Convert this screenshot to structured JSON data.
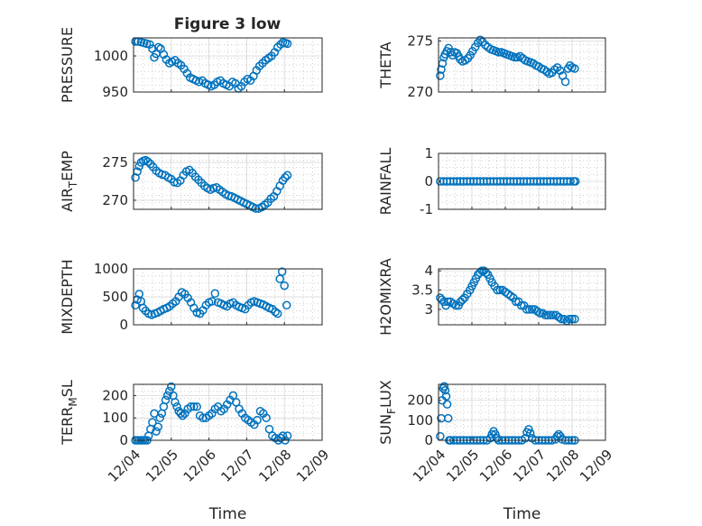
{
  "figure_title": "Figure 3 low",
  "marker_color": "#0072BD",
  "chart_data": [
    {
      "type": "scatter",
      "title": "Figure 3 low",
      "ylabel": "PRESSURE",
      "xlabel": "",
      "xlim": [
        0,
        5
      ],
      "ylim": [
        950,
        1025
      ],
      "yticks": [
        950,
        1000
      ],
      "xticks": [],
      "grid": true,
      "series": [
        {
          "x": [
            0.05,
            0.12,
            0.2,
            0.28,
            0.35,
            0.43,
            0.5,
            0.55,
            0.6,
            0.66,
            0.72,
            0.8,
            0.87,
            0.95,
            1.02,
            1.1,
            1.18,
            1.26,
            1.34,
            1.42,
            1.5,
            1.58,
            1.66,
            1.74,
            1.82,
            1.9,
            1.98,
            2.06,
            2.14,
            2.22,
            2.3,
            2.38,
            2.46,
            2.54,
            2.62,
            2.7,
            2.78,
            2.86,
            2.94,
            3.02,
            3.1,
            3.18,
            3.26,
            3.34,
            3.42,
            3.5,
            3.58,
            3.66,
            3.74,
            3.82,
            3.9,
            3.96,
            4.02,
            4.08
          ],
          "y": [
            1020,
            1020,
            1019,
            1018,
            1017,
            1016,
            1010,
            998,
            1003,
            1012,
            1010,
            1002,
            995,
            990,
            992,
            994,
            990,
            987,
            982,
            976,
            970,
            968,
            966,
            964,
            966,
            962,
            960,
            958,
            960,
            964,
            966,
            962,
            960,
            958,
            964,
            962,
            955,
            958,
            964,
            968,
            966,
            972,
            980,
            986,
            990,
            994,
            997,
            1000,
            1005,
            1012,
            1016,
            1019,
            1018,
            1017
          ]
        }
      ]
    },
    {
      "type": "scatter",
      "ylabel": "THETA",
      "xlabel": "",
      "xlim": [
        0,
        5
      ],
      "ylim": [
        270,
        275.3
      ],
      "yticks": [
        270,
        275
      ],
      "xticks": [],
      "grid": true,
      "series": [
        {
          "x": [
            0.05,
            0.08,
            0.12,
            0.16,
            0.2,
            0.25,
            0.3,
            0.36,
            0.42,
            0.48,
            0.55,
            0.6,
            0.65,
            0.72,
            0.8,
            0.88,
            0.95,
            1.02,
            1.1,
            1.18,
            1.25,
            1.32,
            1.4,
            1.48,
            1.56,
            1.64,
            1.72,
            1.8,
            1.88,
            1.96,
            2.04,
            2.12,
            2.2,
            2.28,
            2.36,
            2.44,
            2.52,
            2.6,
            2.68,
            2.76,
            2.84,
            2.92,
            3.0,
            3.08,
            3.16,
            3.24,
            3.32,
            3.4,
            3.48,
            3.56,
            3.64,
            3.72,
            3.8,
            3.88,
            3.94,
            4.0,
            4.08
          ],
          "y": [
            271.6,
            272.2,
            272.8,
            273.4,
            273.7,
            274.0,
            274.3,
            273.9,
            273.6,
            273.9,
            273.8,
            273.5,
            273.2,
            273.0,
            273.1,
            273.3,
            273.6,
            274.0,
            274.4,
            274.8,
            275.1,
            274.9,
            274.6,
            274.4,
            274.2,
            274.1,
            274.0,
            273.9,
            273.9,
            273.8,
            273.7,
            273.6,
            273.5,
            273.4,
            273.4,
            273.5,
            273.3,
            273.1,
            273.0,
            272.9,
            272.8,
            272.6,
            272.5,
            272.3,
            272.2,
            272.0,
            271.8,
            271.9,
            272.2,
            272.4,
            272.1,
            271.6,
            271.0,
            272.3,
            272.6,
            272.4,
            272.3
          ]
        }
      ]
    },
    {
      "type": "scatter",
      "ylabel": "AIR_TEMP",
      "xlabel": "",
      "xlim": [
        0,
        5
      ],
      "ylim": [
        268.8,
        276.2
      ],
      "yticks": [
        270,
        275
      ],
      "xticks": [],
      "grid": true,
      "series": [
        {
          "x": [
            0.05,
            0.1,
            0.15,
            0.2,
            0.26,
            0.32,
            0.38,
            0.45,
            0.52,
            0.6,
            0.68,
            0.76,
            0.84,
            0.92,
            1.0,
            1.08,
            1.16,
            1.24,
            1.32,
            1.4,
            1.48,
            1.56,
            1.64,
            1.72,
            1.8,
            1.88,
            1.96,
            2.04,
            2.12,
            2.2,
            2.28,
            2.36,
            2.44,
            2.52,
            2.6,
            2.68,
            2.76,
            2.84,
            2.92,
            3.0,
            3.08,
            3.16,
            3.24,
            3.32,
            3.4,
            3.48,
            3.56,
            3.64,
            3.72,
            3.8,
            3.88,
            3.96,
            4.02,
            4.08
          ],
          "y": [
            273.0,
            273.8,
            274.5,
            275.0,
            275.2,
            275.3,
            275.1,
            274.8,
            274.4,
            273.9,
            273.6,
            273.4,
            273.3,
            273.0,
            272.8,
            272.4,
            272.3,
            272.6,
            273.3,
            273.8,
            274.0,
            273.6,
            273.1,
            272.7,
            272.3,
            271.9,
            271.6,
            271.4,
            271.6,
            271.7,
            271.4,
            271.1,
            270.8,
            270.6,
            270.5,
            270.3,
            270.1,
            269.9,
            269.7,
            269.5,
            269.3,
            269.1,
            268.9,
            268.9,
            269.1,
            269.4,
            269.7,
            270.2,
            270.5,
            271.2,
            271.9,
            272.6,
            273.0,
            273.3
          ]
        }
      ]
    },
    {
      "type": "scatter",
      "ylabel": "RAINFALL",
      "xlabel": "",
      "xlim": [
        0,
        5
      ],
      "ylim": [
        -1,
        1
      ],
      "yticks": [
        -1,
        0,
        1
      ],
      "xticks": [],
      "grid": true,
      "series": [
        {
          "x": [
            0.05,
            0.15,
            0.25,
            0.35,
            0.45,
            0.55,
            0.65,
            0.75,
            0.85,
            0.95,
            1.05,
            1.15,
            1.25,
            1.35,
            1.45,
            1.55,
            1.65,
            1.75,
            1.85,
            1.95,
            2.05,
            2.15,
            2.25,
            2.35,
            2.45,
            2.55,
            2.65,
            2.75,
            2.85,
            2.95,
            3.05,
            3.15,
            3.25,
            3.35,
            3.45,
            3.55,
            3.65,
            3.75,
            3.85,
            3.95,
            4.05,
            4.1
          ],
          "y": [
            0,
            0,
            0,
            0,
            0,
            0,
            0,
            0,
            0,
            0,
            0,
            0,
            0,
            0,
            0,
            0,
            0,
            0,
            0,
            0,
            0,
            0,
            0,
            0,
            0,
            0,
            0,
            0,
            0,
            0,
            0,
            0,
            0,
            0,
            0,
            0,
            0,
            0,
            0,
            0,
            0,
            0
          ]
        }
      ]
    },
    {
      "type": "scatter",
      "ylabel": "MIXDEPTH",
      "xlabel": "",
      "xlim": [
        0,
        5
      ],
      "ylim": [
        0,
        1000
      ],
      "yticks": [
        0,
        500,
        1000
      ],
      "xticks": [],
      "grid": true,
      "series": [
        {
          "x": [
            0.05,
            0.1,
            0.15,
            0.2,
            0.25,
            0.32,
            0.4,
            0.48,
            0.56,
            0.64,
            0.72,
            0.8,
            0.88,
            0.96,
            1.04,
            1.12,
            1.2,
            1.28,
            1.36,
            1.44,
            1.52,
            1.6,
            1.68,
            1.76,
            1.84,
            1.92,
            2.0,
            2.08,
            2.16,
            2.24,
            2.32,
            2.4,
            2.48,
            2.56,
            2.64,
            2.72,
            2.8,
            2.88,
            2.96,
            3.04,
            3.12,
            3.2,
            3.28,
            3.36,
            3.44,
            3.52,
            3.6,
            3.68,
            3.76,
            3.82,
            3.88,
            3.94,
            4.0,
            4.06
          ],
          "y": [
            350,
            450,
            550,
            420,
            300,
            250,
            200,
            180,
            200,
            220,
            250,
            280,
            300,
            330,
            380,
            420,
            500,
            580,
            550,
            480,
            400,
            300,
            220,
            200,
            260,
            350,
            400,
            420,
            560,
            400,
            380,
            350,
            330,
            380,
            400,
            350,
            320,
            300,
            280,
            350,
            400,
            420,
            400,
            380,
            360,
            330,
            300,
            280,
            230,
            200,
            820,
            950,
            700,
            350
          ]
        }
      ]
    },
    {
      "type": "scatter",
      "ylabel": "H2OMIXRA",
      "xlabel": "",
      "xlim": [
        0,
        5
      ],
      "ylim": [
        2.6,
        4.05
      ],
      "yticks": [
        3,
        3.5,
        4
      ],
      "xticks": [],
      "grid": true,
      "series": [
        {
          "x": [
            0.05,
            0.1,
            0.16,
            0.22,
            0.28,
            0.36,
            0.44,
            0.52,
            0.6,
            0.66,
            0.72,
            0.78,
            0.86,
            0.94,
            1.0,
            1.06,
            1.12,
            1.18,
            1.24,
            1.3,
            1.36,
            1.42,
            1.48,
            1.54,
            1.6,
            1.68,
            1.76,
            1.84,
            1.92,
            2.0,
            2.08,
            2.16,
            2.24,
            2.32,
            2.4,
            2.48,
            2.56,
            2.64,
            2.72,
            2.8,
            2.88,
            2.96,
            3.04,
            3.12,
            3.2,
            3.28,
            3.36,
            3.44,
            3.52,
            3.6,
            3.68,
            3.76,
            3.84,
            3.92,
            4.0,
            4.08
          ],
          "y": [
            3.3,
            3.25,
            3.2,
            3.1,
            3.2,
            3.2,
            3.15,
            3.1,
            3.1,
            3.2,
            3.25,
            3.3,
            3.4,
            3.5,
            3.6,
            3.7,
            3.8,
            3.9,
            3.95,
            4.0,
            4.0,
            3.95,
            3.9,
            3.8,
            3.7,
            3.6,
            3.5,
            3.5,
            3.5,
            3.45,
            3.4,
            3.35,
            3.3,
            3.2,
            3.2,
            3.1,
            3.1,
            3.0,
            3.0,
            3.0,
            3.0,
            2.95,
            2.9,
            2.9,
            2.85,
            2.85,
            2.85,
            2.85,
            2.85,
            2.8,
            2.75,
            2.75,
            2.7,
            2.75,
            2.75,
            2.75
          ]
        }
      ]
    },
    {
      "type": "scatter",
      "ylabel": "TERR_MSL",
      "xlabel": "Time",
      "xlim": [
        0,
        5
      ],
      "ylim": [
        0,
        250
      ],
      "yticks": [
        0,
        100,
        200
      ],
      "xticks": [
        "12/04",
        "12/05",
        "12/06",
        "12/07",
        "12/08",
        "12/09"
      ],
      "grid": true,
      "series": [
        {
          "x": [
            0.05,
            0.1,
            0.15,
            0.2,
            0.25,
            0.3,
            0.36,
            0.4,
            0.45,
            0.5,
            0.55,
            0.6,
            0.65,
            0.7,
            0.75,
            0.8,
            0.85,
            0.9,
            0.95,
            1.0,
            1.05,
            1.1,
            1.15,
            1.2,
            1.25,
            1.3,
            1.36,
            1.44,
            1.52,
            1.6,
            1.68,
            1.76,
            1.84,
            1.92,
            2.0,
            2.08,
            2.16,
            2.24,
            2.32,
            2.4,
            2.48,
            2.56,
            2.64,
            2.72,
            2.8,
            2.88,
            2.96,
            3.04,
            3.12,
            3.2,
            3.28,
            3.36,
            3.44,
            3.52,
            3.6,
            3.68,
            3.76,
            3.84,
            3.9,
            3.96,
            4.02,
            4.08
          ],
          "y": [
            0,
            0,
            0,
            0,
            0,
            0,
            0,
            20,
            50,
            80,
            120,
            40,
            60,
            100,
            120,
            150,
            180,
            200,
            220,
            240,
            200,
            170,
            150,
            130,
            120,
            110,
            120,
            140,
            150,
            150,
            150,
            110,
            100,
            100,
            110,
            120,
            140,
            150,
            130,
            140,
            160,
            180,
            200,
            170,
            140,
            120,
            100,
            90,
            80,
            70,
            90,
            130,
            120,
            100,
            50,
            20,
            10,
            0,
            10,
            20,
            0,
            20
          ]
        }
      ]
    },
    {
      "type": "scatter",
      "ylabel": "SUN_FLUX",
      "xlabel": "Time",
      "xlim": [
        0,
        5
      ],
      "ylim": [
        0,
        280
      ],
      "yticks": [
        0,
        100,
        200
      ],
      "xticks": [
        "12/04",
        "12/05",
        "12/06",
        "12/07",
        "12/08",
        "12/09"
      ],
      "grid": true,
      "series": [
        {
          "x": [
            0.05,
            0.08,
            0.11,
            0.14,
            0.17,
            0.2,
            0.23,
            0.26,
            0.29,
            0.32,
            0.36,
            0.45,
            0.55,
            0.65,
            0.75,
            0.85,
            0.95,
            1.05,
            1.15,
            1.25,
            1.35,
            1.45,
            1.55,
            1.6,
            1.65,
            1.7,
            1.75,
            1.8,
            1.9,
            2.0,
            2.1,
            2.2,
            2.3,
            2.4,
            2.5,
            2.6,
            2.65,
            2.7,
            2.75,
            2.8,
            2.9,
            3.0,
            3.1,
            3.2,
            3.3,
            3.4,
            3.5,
            3.55,
            3.6,
            3.65,
            3.7,
            3.8,
            3.9,
            4.0,
            4.08
          ],
          "y": [
            20,
            110,
            200,
            260,
            270,
            250,
            220,
            180,
            110,
            0,
            0,
            0,
            0,
            0,
            0,
            0,
            0,
            0,
            0,
            0,
            0,
            0,
            10,
            30,
            45,
            30,
            10,
            0,
            0,
            0,
            0,
            0,
            0,
            0,
            0,
            10,
            40,
            55,
            35,
            10,
            0,
            0,
            0,
            0,
            0,
            0,
            5,
            20,
            30,
            20,
            5,
            0,
            0,
            0,
            0
          ]
        }
      ]
    }
  ]
}
